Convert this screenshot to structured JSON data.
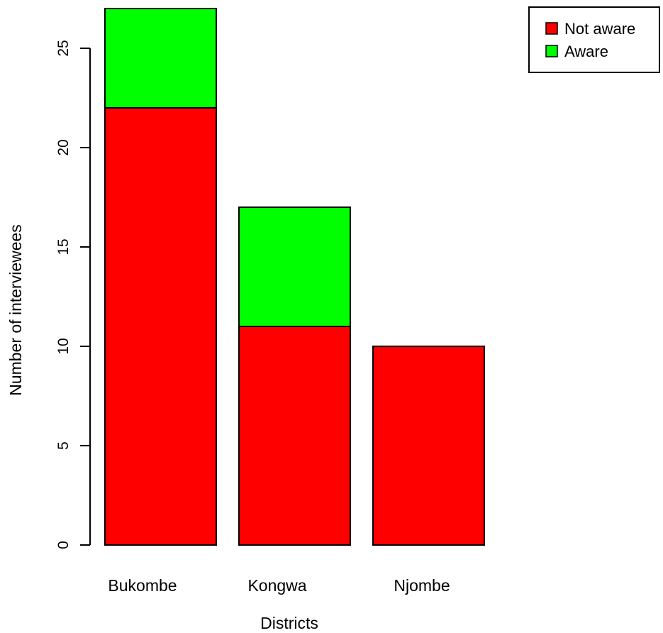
{
  "chart_data": {
    "type": "bar",
    "stacked": true,
    "title": "",
    "xlabel": "Districts",
    "ylabel": "Number of interviewees",
    "categories": [
      "Bukombe",
      "Kongwa",
      "Njombe"
    ],
    "series": [
      {
        "name": "Not aware",
        "color": "#ff0000",
        "values": [
          22,
          11,
          10
        ]
      },
      {
        "name": "Aware",
        "color": "#00ff00",
        "values": [
          5,
          6,
          0
        ]
      }
    ],
    "yticks": [
      0,
      5,
      10,
      15,
      20,
      25
    ],
    "ylim": [
      0,
      27
    ],
    "grid": false,
    "legend": {
      "position": "top-right",
      "order": [
        "Not aware",
        "Aware"
      ]
    }
  }
}
